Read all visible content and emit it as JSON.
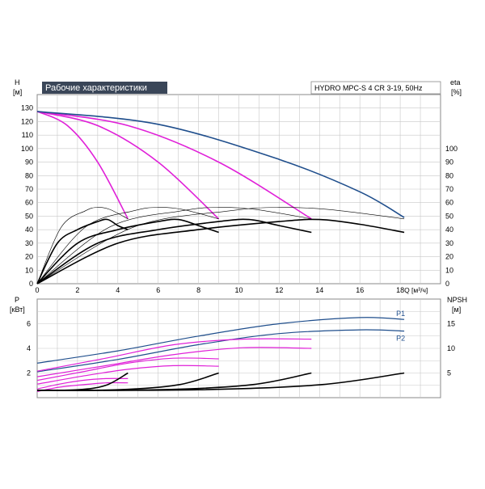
{
  "chart_data": [
    {
      "type": "line",
      "title": "Рабочие характеристики",
      "model": "HYDRO MPC-S 4 CR 3-19, 50Hz",
      "xlabel": "Q [м³/ч]",
      "x_unit_label": "Q [м³/ч]",
      "ylabel_left": "H",
      "ylabel_left_unit": "[м]",
      "ylabel_right": "eta",
      "ylabel_right_unit": "[%]",
      "xlim": [
        0,
        20
      ],
      "ylim_left": [
        0,
        140
      ],
      "ylim_right": [
        0,
        140
      ],
      "x_ticks": [
        0,
        2,
        4,
        6,
        8,
        10,
        12,
        14,
        16,
        18
      ],
      "y_ticks_left": [
        0,
        10,
        20,
        30,
        40,
        50,
        60,
        70,
        80,
        90,
        100,
        110,
        120,
        130
      ],
      "y_ticks_right": [
        0,
        10,
        20,
        30,
        40,
        50,
        60,
        70,
        80,
        90,
        100
      ],
      "grid": true,
      "colors": {
        "blue": "#1f4e8c",
        "magenta": "#e020d8",
        "black": "#000000"
      },
      "series": [
        {
          "color": "magenta",
          "points": [
            [
              0,
              127.5
            ],
            [
              1.5,
              117
            ],
            [
              3,
              90
            ],
            [
              4.5,
              48
            ]
          ]
        },
        {
          "color": "magenta",
          "points": [
            [
              0,
              127.5
            ],
            [
              3,
              117
            ],
            [
              6,
              90
            ],
            [
              9,
              48
            ]
          ]
        },
        {
          "color": "magenta",
          "points": [
            [
              0,
              127.5
            ],
            [
              4.5,
              117
            ],
            [
              9,
              90
            ],
            [
              13.6,
              48
            ]
          ]
        },
        {
          "color": "blue",
          "points": [
            [
              0,
              127.5
            ],
            [
              6,
              118
            ],
            [
              12,
              92
            ],
            [
              16,
              68
            ],
            [
              18.2,
              49
            ]
          ]
        },
        {
          "color": "black",
          "width": 1.6,
          "points": [
            [
              0,
              0
            ],
            [
              1,
              30
            ],
            [
              2,
              40
            ],
            [
              3,
              46
            ],
            [
              3.5,
              47.5
            ],
            [
              4,
              43
            ],
            [
              4.5,
              40
            ]
          ]
        },
        {
          "color": "black",
          "width": 1.6,
          "points": [
            [
              0,
              0
            ],
            [
              2,
              30
            ],
            [
              4,
              40
            ],
            [
              6,
              46
            ],
            [
              7,
              47.5
            ],
            [
              8,
              43
            ],
            [
              9,
              38
            ]
          ]
        },
        {
          "color": "black",
          "width": 1.6,
          "points": [
            [
              0,
              0
            ],
            [
              3,
              30
            ],
            [
              6,
              40
            ],
            [
              9,
              46
            ],
            [
              10.5,
              47.5
            ],
            [
              12,
              43
            ],
            [
              13.6,
              38
            ]
          ]
        },
        {
          "color": "black",
          "width": 1.6,
          "points": [
            [
              0,
              0
            ],
            [
              4,
              30
            ],
            [
              8,
              40
            ],
            [
              12,
              46
            ],
            [
              14,
              47.5
            ],
            [
              16,
              44
            ],
            [
              18.2,
              38
            ]
          ]
        },
        {
          "color": "black",
          "width": 0.6,
          "points": [
            [
              0,
              0
            ],
            [
              1.2,
              42
            ],
            [
              2.4,
              54
            ],
            [
              3,
              56.5
            ],
            [
              3.6,
              55
            ],
            [
              4.5,
              48
            ]
          ]
        },
        {
          "color": "black",
          "width": 0.6,
          "points": [
            [
              0,
              0
            ],
            [
              2.4,
              42
            ],
            [
              4.8,
              54
            ],
            [
              6,
              56.5
            ],
            [
              7.2,
              55
            ],
            [
              9,
              48
            ]
          ]
        },
        {
          "color": "black",
          "width": 0.6,
          "points": [
            [
              0,
              0
            ],
            [
              3.6,
              42
            ],
            [
              7.2,
              54
            ],
            [
              9,
              56.5
            ],
            [
              10.8,
              55
            ],
            [
              13.6,
              48
            ]
          ]
        },
        {
          "color": "black",
          "width": 0.6,
          "points": [
            [
              0,
              0
            ],
            [
              4.8,
              42
            ],
            [
              9.6,
              54
            ],
            [
              12,
              56.5
            ],
            [
              14.4,
              55
            ],
            [
              18.2,
              48
            ]
          ]
        }
      ]
    },
    {
      "type": "line",
      "ylabel_left": "P",
      "ylabel_left_unit": "[кВт]",
      "ylabel_right": "NPSH",
      "ylabel_right_unit": "[м]",
      "xlim": [
        0,
        20
      ],
      "ylim_left": [
        0,
        8
      ],
      "ylim_right": [
        0,
        20
      ],
      "y_ticks_left": [
        2,
        4,
        6
      ],
      "y_ticks_right": [
        5,
        10,
        15
      ],
      "grid": true,
      "series_labels": {
        "p1": "P1",
        "p2": "P2"
      },
      "series": [
        {
          "name": "P1",
          "color": "blue",
          "points": [
            [
              0,
              2.8
            ],
            [
              4,
              3.8
            ],
            [
              8,
              5
            ],
            [
              12,
              6
            ],
            [
              16,
              6.5
            ],
            [
              18.2,
              6.35
            ]
          ]
        },
        {
          "name": "P2",
          "color": "blue",
          "points": [
            [
              0,
              2.1
            ],
            [
              4,
              3.1
            ],
            [
              8,
              4.3
            ],
            [
              12,
              5.2
            ],
            [
              16,
              5.5
            ],
            [
              18.2,
              5.4
            ]
          ]
        },
        {
          "color": "magenta",
          "points": [
            [
              0,
              2.15
            ],
            [
              3.4,
              3.2
            ],
            [
              6.8,
              4.3
            ],
            [
              10.2,
              4.75
            ],
            [
              13.6,
              4.75
            ]
          ]
        },
        {
          "color": "magenta",
          "points": [
            [
              0,
              1.7
            ],
            [
              3.4,
              2.6
            ],
            [
              6.8,
              3.5
            ],
            [
              10.2,
              4.05
            ],
            [
              13.6,
              4.0
            ]
          ]
        },
        {
          "color": "magenta",
          "points": [
            [
              0,
              1.4
            ],
            [
              2.25,
              2.1
            ],
            [
              4.5,
              2.8
            ],
            [
              6.75,
              3.2
            ],
            [
              9,
              3.15
            ]
          ]
        },
        {
          "color": "magenta",
          "points": [
            [
              0,
              1.1
            ],
            [
              2.25,
              1.75
            ],
            [
              4.5,
              2.3
            ],
            [
              6.75,
              2.6
            ],
            [
              9,
              2.55
            ]
          ]
        },
        {
          "color": "magenta",
          "points": [
            [
              0,
              0.7
            ],
            [
              1.1,
              1.1
            ],
            [
              2.25,
              1.4
            ],
            [
              3.4,
              1.55
            ],
            [
              4.5,
              1.55
            ]
          ]
        },
        {
          "color": "magenta",
          "points": [
            [
              0,
              0.5
            ],
            [
              1.1,
              0.85
            ],
            [
              2.25,
              1.05
            ],
            [
              3.4,
              1.2
            ],
            [
              4.5,
              1.2
            ]
          ]
        },
        {
          "color": "black",
          "axis": "right",
          "points": [
            [
              0,
              1.5
            ],
            [
              2,
              1.6
            ],
            [
              3.4,
              2.5
            ],
            [
              4.5,
              5
            ]
          ]
        },
        {
          "color": "black",
          "axis": "right",
          "points": [
            [
              0,
              1.5
            ],
            [
              4,
              1.6
            ],
            [
              7,
              2.6
            ],
            [
              9,
              5
            ]
          ]
        },
        {
          "color": "black",
          "axis": "right",
          "points": [
            [
              0,
              1.5
            ],
            [
              6,
              1.6
            ],
            [
              10.6,
              2.6
            ],
            [
              13.6,
              5
            ]
          ]
        },
        {
          "color": "black",
          "axis": "right",
          "points": [
            [
              0,
              1.5
            ],
            [
              8,
              1.6
            ],
            [
              14,
              2.6
            ],
            [
              18.2,
              5
            ]
          ]
        }
      ]
    }
  ]
}
